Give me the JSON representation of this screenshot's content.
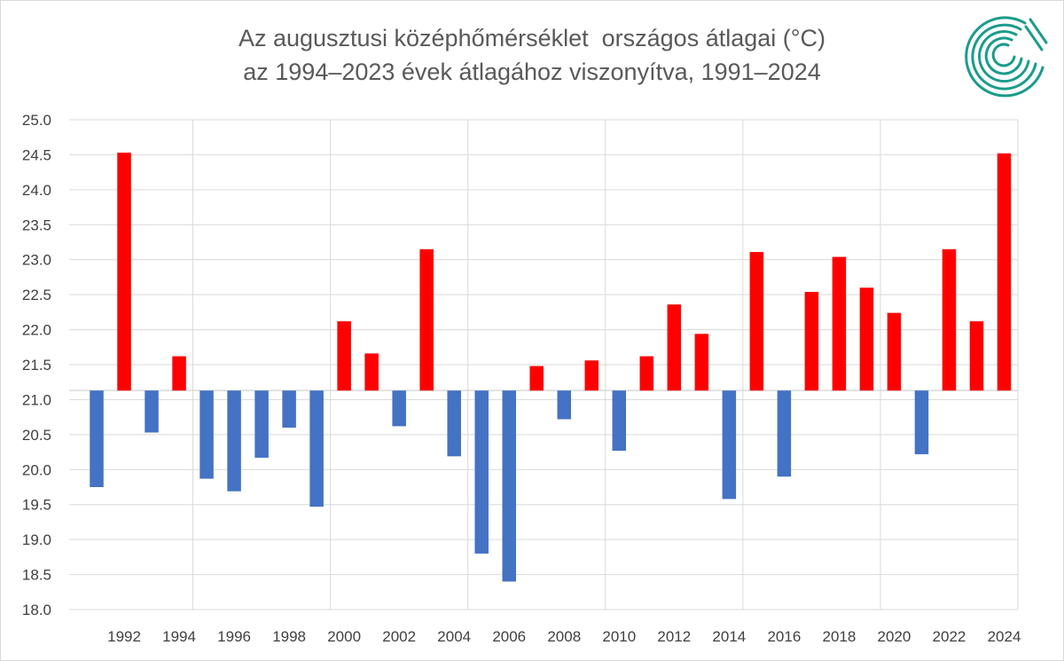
{
  "chart_data": {
    "type": "bar",
    "title": "Az augusztusi középhőmérséklet  országos átlagai (°C)",
    "subtitle": "az 1994–2023 évek átlagához viszonyítva, 1991–2024",
    "baseline": 21.13,
    "ylim": [
      18.0,
      25.0
    ],
    "yticks": [
      "18.0",
      "18.5",
      "19.0",
      "19.5",
      "20.0",
      "20.5",
      "21.0",
      "21.5",
      "22.0",
      "22.5",
      "23.0",
      "23.5",
      "24.0",
      "24.5",
      "25.0"
    ],
    "xtick_labels": [
      "1992",
      "1994",
      "1996",
      "1998",
      "2000",
      "2002",
      "2004",
      "2006",
      "2008",
      "2010",
      "2012",
      "2014",
      "2016",
      "2018",
      "2020",
      "2022",
      "2024"
    ],
    "categories": [
      1991,
      1992,
      1993,
      1994,
      1995,
      1996,
      1997,
      1998,
      1999,
      2000,
      2001,
      2002,
      2003,
      2004,
      2005,
      2006,
      2007,
      2008,
      2009,
      2010,
      2011,
      2012,
      2013,
      2014,
      2015,
      2016,
      2017,
      2018,
      2019,
      2020,
      2021,
      2022,
      2023,
      2024
    ],
    "values": [
      19.75,
      24.53,
      20.53,
      21.62,
      19.87,
      19.69,
      20.17,
      20.6,
      19.47,
      22.12,
      21.66,
      20.62,
      23.15,
      20.19,
      18.8,
      18.4,
      21.48,
      20.72,
      21.56,
      20.27,
      21.62,
      22.36,
      21.94,
      19.58,
      23.11,
      19.9,
      22.54,
      23.04,
      22.6,
      22.24,
      20.22,
      23.15,
      22.12,
      24.52
    ],
    "grid": true,
    "colors": {
      "above": "#ff0000",
      "below": "#4472c4",
      "grid": "#d9d9d9",
      "axis_text": "#404040",
      "title": "#595959",
      "logo": "#1a9c8a"
    }
  }
}
